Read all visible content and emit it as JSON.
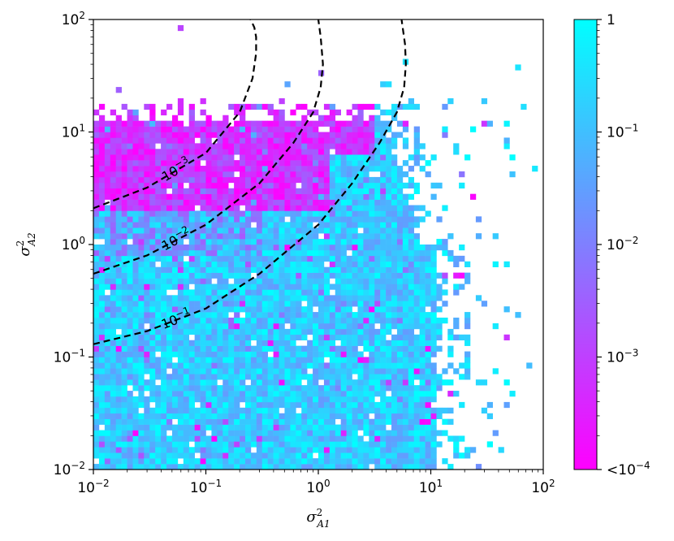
{
  "chart_data": {
    "type": "heatmap",
    "scale": {
      "x": "log",
      "y": "log"
    },
    "xlim": [
      0.01,
      100
    ],
    "ylim": [
      0.01,
      100
    ],
    "xlabel": "σ²_A1",
    "ylabel": "σ²_A2",
    "x_ticks": [
      {
        "value": 0.01,
        "base": "10",
        "exp": "−2"
      },
      {
        "value": 0.1,
        "base": "10",
        "exp": "−1"
      },
      {
        "value": 1,
        "base": "10",
        "exp": "0"
      },
      {
        "value": 10,
        "base": "10",
        "exp": "1"
      },
      {
        "value": 100,
        "base": "10",
        "exp": "2"
      }
    ],
    "y_ticks": [
      {
        "value": 0.01,
        "base": "10",
        "exp": "−2"
      },
      {
        "value": 0.1,
        "base": "10",
        "exp": "−1"
      },
      {
        "value": 1,
        "base": "10",
        "exp": "0"
      },
      {
        "value": 10,
        "base": "10",
        "exp": "1"
      },
      {
        "value": 100,
        "base": "10",
        "exp": "2"
      }
    ],
    "colorbar": {
      "scale": "log",
      "range": [
        0.0001,
        1
      ],
      "colors": [
        "#ff00ff",
        "#00ffff"
      ],
      "ticks": [
        {
          "value": 1,
          "text": "1",
          "base": "",
          "exp": ""
        },
        {
          "value": 0.1,
          "text": "",
          "base": "10",
          "exp": "−1"
        },
        {
          "value": 0.01,
          "text": "",
          "base": "10",
          "exp": "−2"
        },
        {
          "value": 0.001,
          "text": "",
          "base": "10",
          "exp": "−3"
        },
        {
          "value": 0.0001,
          "text": "<",
          "base": "10",
          "exp": "−4"
        }
      ]
    },
    "heatmap_description": {
      "bins_per_decade": 20,
      "data_x_extent": [
        0.01,
        60
      ],
      "data_y_extent": [
        0.01,
        15
      ],
      "pattern": "cells mostly cyan (~1e-1 to 1) at low sigma_A2; magenta (~1e-4 to 1e-3) for sigma_A2 above ~2 with sigma_A1 below ~1; sparse scattered cells elsewhere"
    },
    "contours": [
      {
        "level": 0.001,
        "label_base": "10",
        "label_exp": "−3",
        "x": [
          0.01,
          0.03,
          0.1,
          0.2,
          0.26,
          0.28,
          0.28,
          0.27,
          0.25
        ],
        "y": [
          2.1,
          3.2,
          6.5,
          15,
          30,
          50,
          70,
          85,
          100
        ]
      },
      {
        "level": 0.01,
        "label_base": "10",
        "label_exp": "−2",
        "x": [
          0.01,
          0.03,
          0.1,
          0.3,
          0.6,
          0.9,
          1.05,
          1.1,
          1.05,
          1.0
        ],
        "y": [
          0.55,
          0.8,
          1.5,
          3.5,
          8,
          15,
          25,
          40,
          70,
          100
        ]
      },
      {
        "level": 0.1,
        "label_base": "10",
        "label_exp": "−1",
        "x": [
          0.01,
          0.03,
          0.1,
          0.3,
          1,
          2,
          3.5,
          5,
          5.8,
          6,
          5.9,
          5.5
        ],
        "y": [
          0.13,
          0.17,
          0.27,
          0.55,
          1.5,
          3.5,
          8,
          15,
          25,
          40,
          60,
          100
        ]
      }
    ]
  }
}
